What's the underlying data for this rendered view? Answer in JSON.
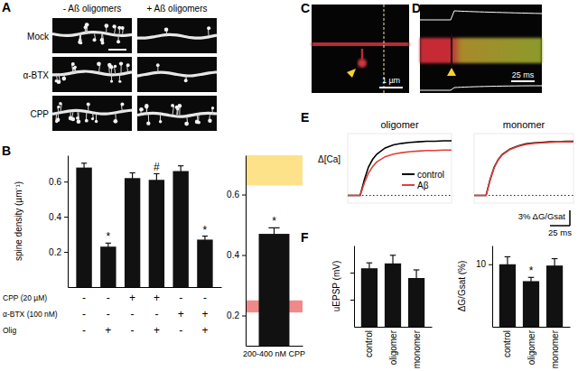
{
  "panel_labels": [
    "A",
    "B",
    "C",
    "D",
    "E",
    "F"
  ],
  "images": {
    "A": {
      "column_labels": [
        "- Aß oligomers",
        "+ Aß oligomers"
      ],
      "row_labels": [
        "Mock",
        "α-BTX",
        "CPP"
      ]
    },
    "C": {
      "scale_label": "1 µm"
    },
    "D": {
      "scale_label": "25 ms"
    }
  },
  "chart_data": [
    {
      "type": "bar",
      "ylabel": "spine density (µm⁻¹)",
      "categories": [
        null,
        null,
        null,
        null,
        null,
        null
      ],
      "values": [
        0.68,
        0.23,
        0.62,
        0.61,
        0.66,
        0.27
      ],
      "errors": [
        0.025,
        0.02,
        0.03,
        0.035,
        0.03,
        0.02
      ],
      "color": "#111111",
      "ylim": [
        0,
        0.75
      ],
      "yticks": [
        0.2,
        0.4,
        0.6
      ],
      "annotations": [
        {
          "index": 1,
          "text": "*"
        },
        {
          "index": 3,
          "text": "#"
        },
        {
          "index": 5,
          "text": "*"
        }
      ],
      "condition_rows": [
        {
          "label": "CPP (20 µM)",
          "signs": [
            "-",
            "-",
            "+",
            "+",
            "-",
            "-"
          ]
        },
        {
          "label": "α-BTX (100 nM)",
          "signs": [
            "-",
            "-",
            "-",
            "-",
            "+",
            "+"
          ]
        },
        {
          "label": "Olig",
          "signs": [
            "-",
            "+",
            "-",
            "+",
            "-",
            "+"
          ]
        }
      ]
    },
    {
      "type": "bar",
      "categories": [
        "200-400 nM CPP"
      ],
      "values": [
        0.47
      ],
      "errors": [
        0.02
      ],
      "color": "#111111",
      "ylim": [
        0.1,
        0.73
      ],
      "yticks": [
        0.2,
        0.4,
        0.6
      ],
      "annotations": [
        {
          "index": 0,
          "text": "*"
        }
      ],
      "bands": [
        {
          "range": [
            0.63,
            0.73
          ],
          "color": "#fde28a"
        },
        {
          "range": [
            0.21,
            0.25
          ],
          "color": "#f08a8a"
        }
      ]
    },
    {
      "type": "line",
      "title": "oligomer",
      "ylabel": "Δ[Ca]",
      "x": [
        -15,
        -10,
        -5,
        0,
        5,
        10,
        15,
        20,
        30,
        40,
        50,
        60,
        70,
        80,
        90,
        100,
        110
      ],
      "series": [
        {
          "name": "control",
          "color": "#000000",
          "values": [
            0,
            0,
            0,
            0,
            3,
            5.5,
            7,
            8,
            9.2,
            9.8,
            10.1,
            10.3,
            10.4,
            10.5,
            10.5,
            10.6,
            10.6
          ]
        },
        {
          "name": "Aβ",
          "color": "#e0403a",
          "values": [
            0,
            0,
            0,
            0,
            2.4,
            4.3,
            5.6,
            6.5,
            7.5,
            8,
            8.3,
            8.5,
            8.6,
            8.7,
            8.7,
            8.8,
            8.8
          ]
        }
      ],
      "xlim": [
        -15,
        110
      ],
      "ylim": [
        -1.5,
        12
      ],
      "yticks": [
        0
      ],
      "grid": true,
      "tick_labels": false,
      "legend": "lower right"
    },
    {
      "type": "line",
      "title": "monomer",
      "x": [
        -15,
        -10,
        -5,
        0,
        5,
        10,
        15,
        20,
        30,
        40,
        50,
        60,
        70,
        80,
        90,
        100,
        110
      ],
      "series": [
        {
          "color": "#000000",
          "values": [
            0,
            0,
            0,
            0,
            3,
            5.4,
            6.9,
            7.9,
            9,
            9.6,
            10,
            10.2,
            10.3,
            10.4,
            10.4,
            10.5,
            10.5
          ]
        },
        {
          "color": "#e0403a",
          "values": [
            0,
            0,
            0,
            0,
            2.9,
            5.3,
            6.8,
            7.8,
            8.9,
            9.5,
            9.9,
            10.1,
            10.2,
            10.3,
            10.4,
            10.4,
            10.4
          ]
        }
      ],
      "xlim": [
        -15,
        110
      ],
      "ylim": [
        -1.5,
        12
      ],
      "yticks": [
        0
      ],
      "grid": true,
      "tick_labels": false,
      "scale_bars": {
        "y": {
          "value": 3,
          "label": "3% ΔG/Gsat"
        },
        "x": {
          "value": 25,
          "label": "25 ms"
        }
      }
    },
    {
      "type": "bar",
      "ylabel": "uEPSP (mV)",
      "categories": [
        "control",
        "oligomer",
        "monomer"
      ],
      "values": [
        1.08,
        1.17,
        0.9
      ],
      "errors": [
        0.1,
        0.15,
        0.15
      ],
      "color": "#111111",
      "ylim": [
        0,
        1.5
      ],
      "yticks": [
        0.5,
        1
      ],
      "tick_labels": "x"
    },
    {
      "type": "bar",
      "ylabel": "ΔG/Gsat (%)",
      "categories": [
        "control",
        "oligomer",
        "monomer"
      ],
      "values": [
        10,
        7.3,
        9.8
      ],
      "errors": [
        1.2,
        0.6,
        1.1
      ],
      "color": "#111111",
      "ylim": [
        0,
        13
      ],
      "yticks": [
        10
      ],
      "annotations": [
        {
          "index": 1,
          "text": "*"
        }
      ]
    }
  ]
}
